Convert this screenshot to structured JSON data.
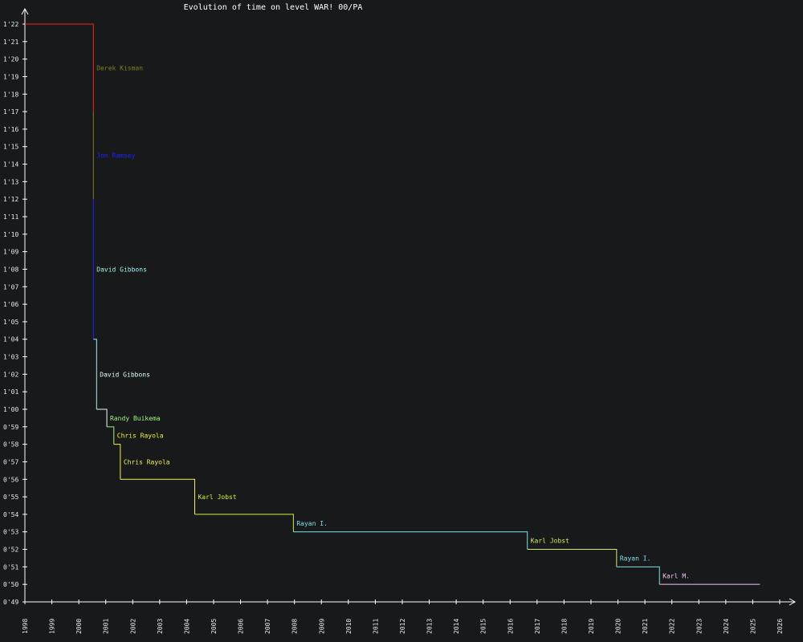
{
  "chart_data": {
    "type": "line",
    "title": "Evolution of time on level WAR! 00/PA",
    "xlabel": "",
    "ylabel": "",
    "x_range": [
      1998,
      2026
    ],
    "x_ticks": [
      "1998",
      "1999",
      "2000",
      "2001",
      "2002",
      "2003",
      "2004",
      "2005",
      "2006",
      "2007",
      "2008",
      "2009",
      "2010",
      "2011",
      "2012",
      "2013",
      "2014",
      "2015",
      "2016",
      "2017",
      "2018",
      "2019",
      "2020",
      "2021",
      "2022",
      "2023",
      "2024",
      "2025",
      "2026"
    ],
    "y_range_seconds": [
      49,
      82
    ],
    "y_ticks": [
      {
        "s": 82,
        "label": "1'22"
      },
      {
        "s": 81,
        "label": "1'21"
      },
      {
        "s": 80,
        "label": "1'20"
      },
      {
        "s": 79,
        "label": "1'19"
      },
      {
        "s": 78,
        "label": "1'18"
      },
      {
        "s": 77,
        "label": "1'17"
      },
      {
        "s": 76,
        "label": "1'16"
      },
      {
        "s": 75,
        "label": "1'15"
      },
      {
        "s": 74,
        "label": "1'14"
      },
      {
        "s": 73,
        "label": "1'13"
      },
      {
        "s": 72,
        "label": "1'12"
      },
      {
        "s": 71,
        "label": "1'11"
      },
      {
        "s": 70,
        "label": "1'10"
      },
      {
        "s": 69,
        "label": "1'09"
      },
      {
        "s": 68,
        "label": "1'08"
      },
      {
        "s": 67,
        "label": "1'07"
      },
      {
        "s": 66,
        "label": "1'06"
      },
      {
        "s": 65,
        "label": "1'05"
      },
      {
        "s": 64,
        "label": "1'04"
      },
      {
        "s": 63,
        "label": "1'03"
      },
      {
        "s": 62,
        "label": "1'02"
      },
      {
        "s": 61,
        "label": "1'01"
      },
      {
        "s": 60,
        "label": "1'00"
      },
      {
        "s": 59,
        "label": "0'59"
      },
      {
        "s": 58,
        "label": "0'58"
      },
      {
        "s": 57,
        "label": "0'57"
      },
      {
        "s": 56,
        "label": "0'56"
      },
      {
        "s": 55,
        "label": "0'55"
      },
      {
        "s": 54,
        "label": "0'54"
      },
      {
        "s": 53,
        "label": "0'53"
      },
      {
        "s": 52,
        "label": "0'52"
      },
      {
        "s": 51,
        "label": "0'51"
      },
      {
        "s": 50,
        "label": "0'50"
      },
      {
        "s": 49,
        "label": "0'49"
      }
    ],
    "grid": false,
    "records": [
      {
        "name": "",
        "time_s": 82,
        "start": 1998.0,
        "color": "#ff2020"
      },
      {
        "name": "Derek Kisman",
        "time_s": 77,
        "start": 2000.54,
        "color": "#808020"
      },
      {
        "name": "Jon Ramsey",
        "time_s": 72,
        "start": 2000.54,
        "color": "#2020ff"
      },
      {
        "name": "David Gibbons",
        "time_s": 64,
        "start": 2000.54,
        "color": "#a8f0f0"
      },
      {
        "name": "David Gibbons",
        "time_s": 60,
        "start": 2000.66,
        "color": "#e0ffff"
      },
      {
        "name": "Randy Buikema",
        "time_s": 59,
        "start": 2001.04,
        "color": "#a0f080"
      },
      {
        "name": "Chris Rayola",
        "time_s": 58,
        "start": 2001.3,
        "color": "#f0f040"
      },
      {
        "name": "Chris Rayola",
        "time_s": 56,
        "start": 2001.54,
        "color": "#f0f060"
      },
      {
        "name": "Karl Jobst",
        "time_s": 54,
        "start": 2004.3,
        "color": "#d0f040"
      },
      {
        "name": "Rayan I.",
        "time_s": 53,
        "start": 2007.96,
        "color": "#80e0e8"
      },
      {
        "name": "Karl Jobst",
        "time_s": 52,
        "start": 2016.64,
        "color": "#d0f060"
      },
      {
        "name": "Rayan I.",
        "time_s": 51,
        "start": 2019.95,
        "color": "#80e0e8"
      },
      {
        "name": "Karl M.",
        "time_s": 50,
        "start": 2021.54,
        "color": "#f0c8f0"
      }
    ],
    "end_x": 2025.27
  }
}
